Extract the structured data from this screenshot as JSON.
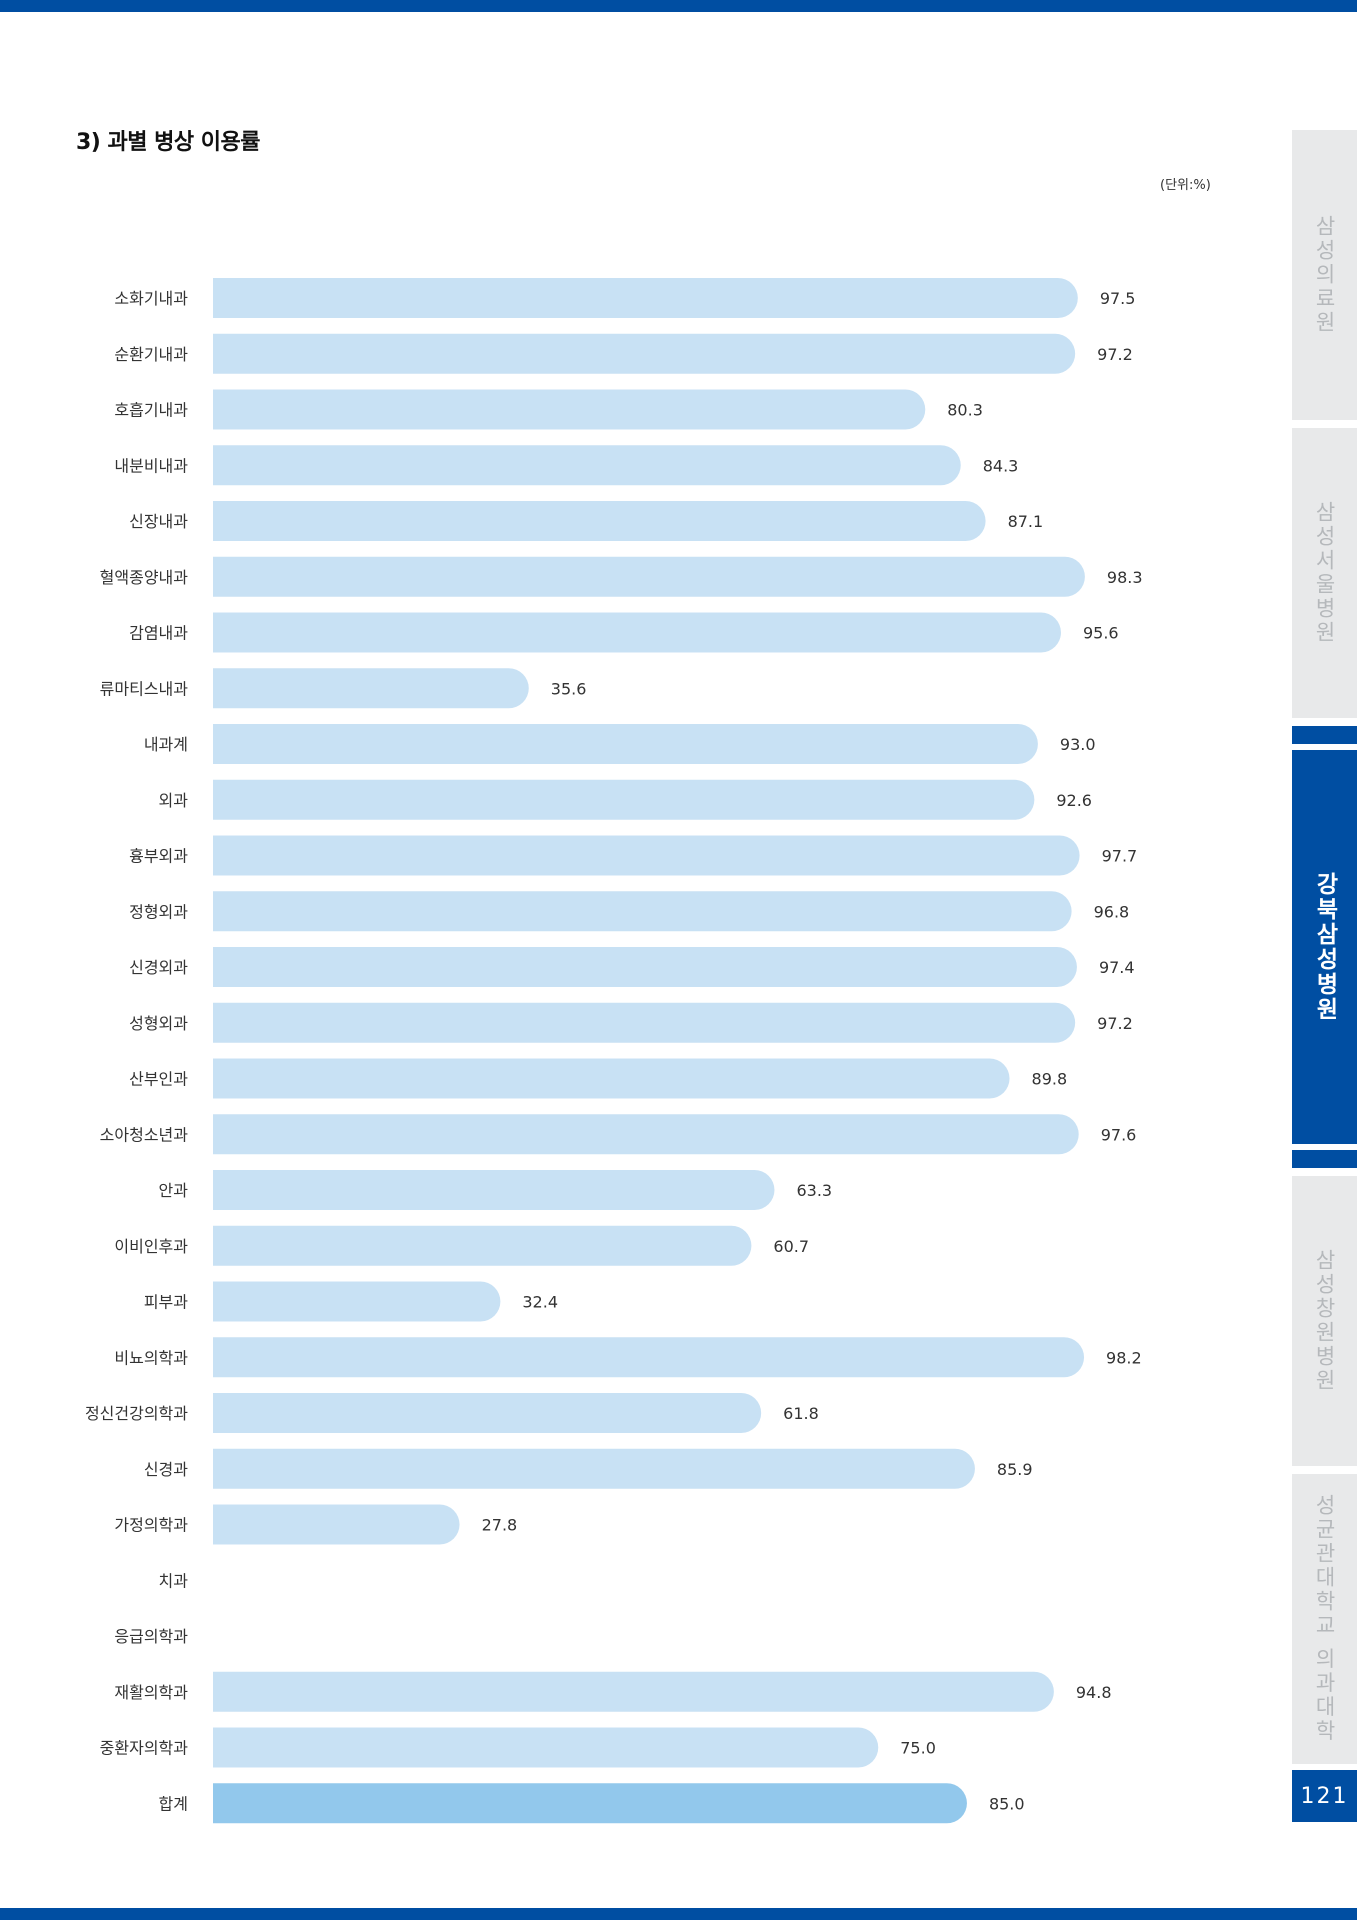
{
  "page": {
    "section_title": "3) 과별 병상 이용률",
    "unit": "(단위:%)",
    "page_number": "121"
  },
  "side_tabs": [
    {
      "label": "삼성의료원",
      "active": false
    },
    {
      "label": "삼성서울병원",
      "active": false
    },
    {
      "label": "강북삼성병원",
      "active": true
    },
    {
      "label": "삼성창원병원",
      "active": false
    },
    {
      "label": "성균관대학교 의과대학",
      "active": false
    }
  ],
  "colors": {
    "bar": "#c8e1f4",
    "total_bar": "#92c8ec",
    "accent": "#004ea2",
    "tab_inactive": "#e8e9ea"
  },
  "chart_data": {
    "type": "bar",
    "orientation": "horizontal",
    "title": "3) 과별 병상 이용률",
    "unit": "(단위:%)",
    "xlim": [
      0,
      100
    ],
    "grid": false,
    "legend": "none",
    "categories": [
      "소화기내과",
      "순환기내과",
      "호흡기내과",
      "내분비내과",
      "신장내과",
      "혈액종양내과",
      "감염내과",
      "류마티스내과",
      "내과계",
      "외과",
      "흉부외과",
      "정형외과",
      "신경외과",
      "성형외과",
      "산부인과",
      "소아청소년과",
      "안과",
      "이비인후과",
      "피부과",
      "비뇨의학과",
      "정신건강의학과",
      "신경과",
      "가정의학과",
      "치과",
      "응급의학과",
      "재활의학과",
      "중환자의학과",
      "합계"
    ],
    "values": [
      97.5,
      97.2,
      80.3,
      84.3,
      87.1,
      98.3,
      95.6,
      35.6,
      93.0,
      92.6,
      97.7,
      96.8,
      97.4,
      97.2,
      89.8,
      97.6,
      63.3,
      60.7,
      32.4,
      98.2,
      61.8,
      85.9,
      27.8,
      null,
      null,
      94.8,
      75.0,
      85.0
    ],
    "value_labels": [
      "97.5",
      "97.2",
      "80.3",
      "84.3",
      "87.1",
      "98.3",
      "95.6",
      "35.6",
      "93.0",
      "92.6",
      "97.7",
      "96.8",
      "97.4",
      "97.2",
      "89.8",
      "97.6",
      "63.3",
      "60.7",
      "32.4",
      "98.2",
      "61.8",
      "85.9",
      "27.8",
      "",
      "",
      "94.8",
      "75.0",
      "85.0"
    ]
  }
}
